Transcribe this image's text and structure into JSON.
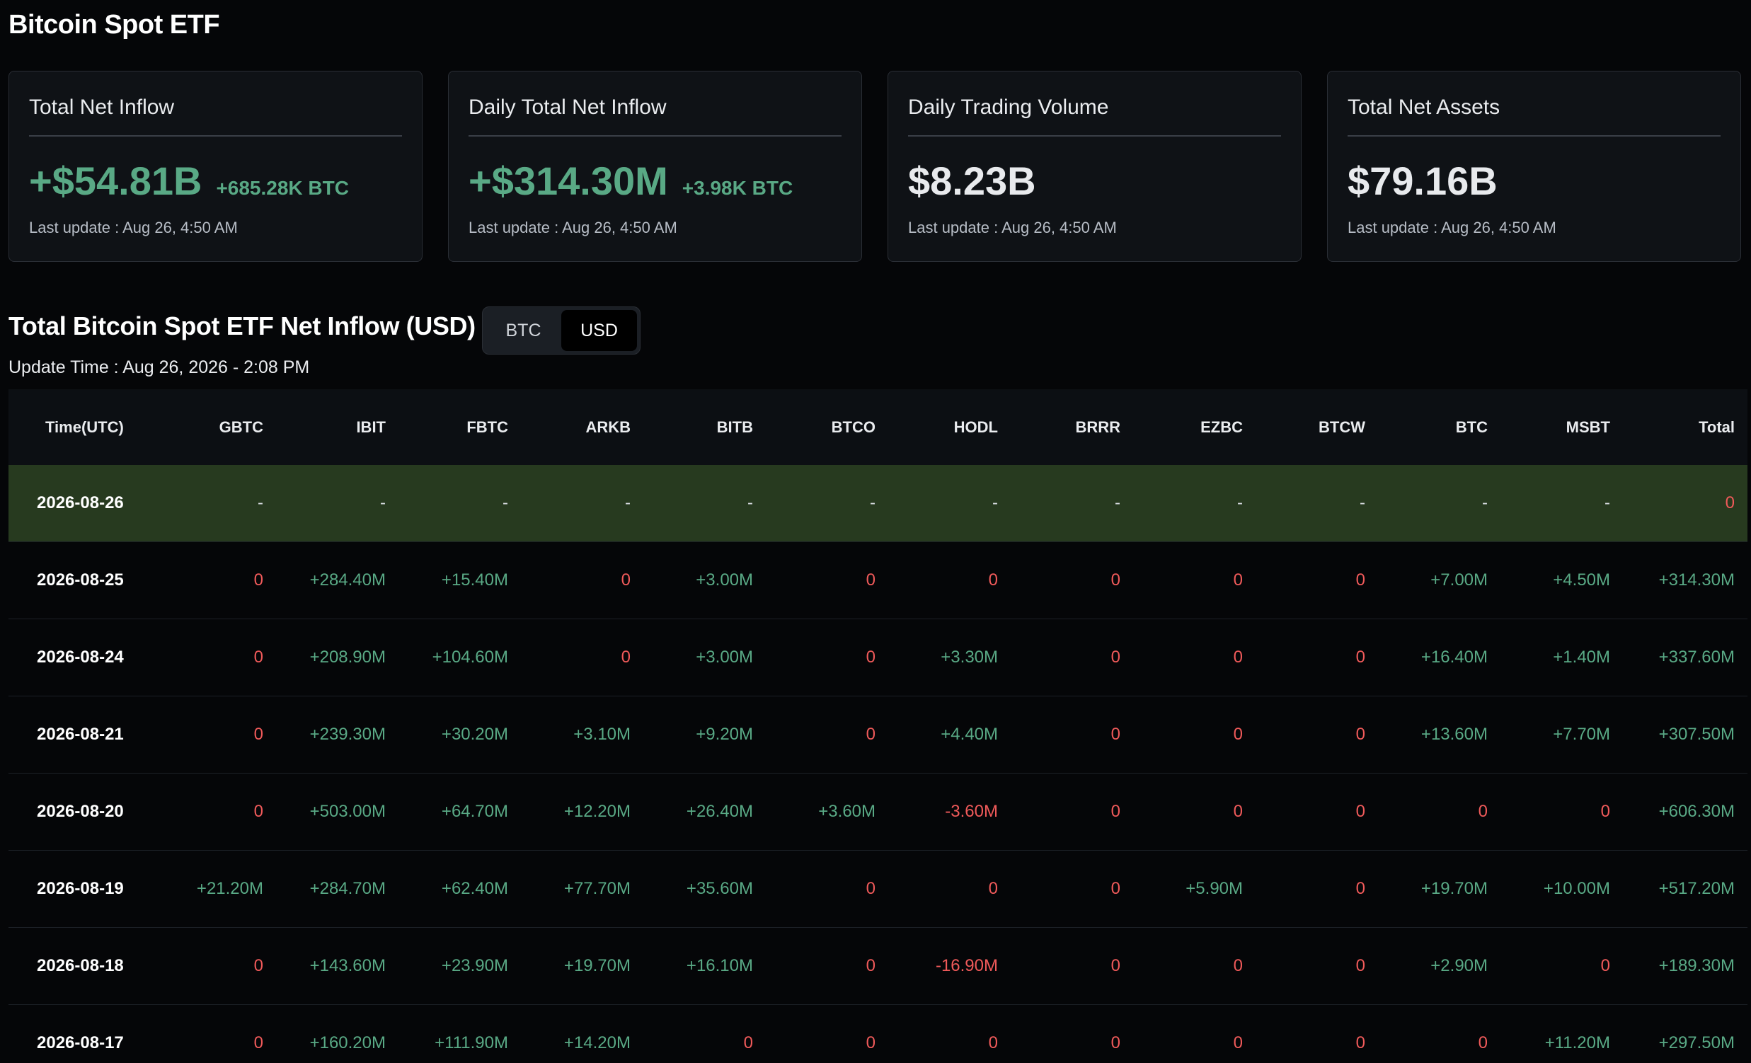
{
  "page": {
    "title": "Bitcoin Spot ETF"
  },
  "cards": [
    {
      "title": "Total Net Inflow",
      "value": "+$54.81B",
      "sub": "+685.28K BTC",
      "update": "Last update : Aug 26, 4:50 AM",
      "tone": "pos"
    },
    {
      "title": "Daily Total Net Inflow",
      "value": "+$314.30M",
      "sub": "+3.98K BTC",
      "update": "Last update : Aug 26, 4:50 AM",
      "tone": "pos"
    },
    {
      "title": "Daily Trading Volume",
      "value": "$8.23B",
      "sub": "",
      "update": "Last update : Aug 26, 4:50 AM",
      "tone": "neutral"
    },
    {
      "title": "Total Net Assets",
      "value": "$79.16B",
      "sub": "",
      "update": "Last update : Aug 26, 4:50 AM",
      "tone": "neutral"
    }
  ],
  "section": {
    "title": "Total Bitcoin Spot ETF Net Inflow (USD)",
    "toggle": {
      "options": [
        "BTC",
        "USD"
      ],
      "selected": "USD"
    },
    "update_time": "Update Time : Aug 26, 2026 - 2:08 PM"
  },
  "table": {
    "columns": [
      "Time(UTC)",
      "GBTC",
      "IBIT",
      "FBTC",
      "ARKB",
      "BITB",
      "BTCO",
      "HODL",
      "BRRR",
      "EZBC",
      "BTCW",
      "BTC",
      "MSBT",
      "Total"
    ],
    "rows": [
      {
        "highlight": true,
        "cells": [
          "2026-08-26",
          "-",
          "-",
          "-",
          "-",
          "-",
          "-",
          "-",
          "-",
          "-",
          "-",
          "-",
          "-",
          "0"
        ]
      },
      {
        "highlight": false,
        "cells": [
          "2026-08-25",
          "0",
          "+284.40M",
          "+15.40M",
          "0",
          "+3.00M",
          "0",
          "0",
          "0",
          "0",
          "0",
          "+7.00M",
          "+4.50M",
          "+314.30M"
        ]
      },
      {
        "highlight": false,
        "cells": [
          "2026-08-24",
          "0",
          "+208.90M",
          "+104.60M",
          "0",
          "+3.00M",
          "0",
          "+3.30M",
          "0",
          "0",
          "0",
          "+16.40M",
          "+1.40M",
          "+337.60M"
        ]
      },
      {
        "highlight": false,
        "cells": [
          "2026-08-21",
          "0",
          "+239.30M",
          "+30.20M",
          "+3.10M",
          "+9.20M",
          "0",
          "+4.40M",
          "0",
          "0",
          "0",
          "+13.60M",
          "+7.70M",
          "+307.50M"
        ]
      },
      {
        "highlight": false,
        "cells": [
          "2026-08-20",
          "0",
          "+503.00M",
          "+64.70M",
          "+12.20M",
          "+26.40M",
          "+3.60M",
          "-3.60M",
          "0",
          "0",
          "0",
          "0",
          "0",
          "+606.30M"
        ]
      },
      {
        "highlight": false,
        "cells": [
          "2026-08-19",
          "+21.20M",
          "+284.70M",
          "+62.40M",
          "+77.70M",
          "+35.60M",
          "0",
          "0",
          "0",
          "+5.90M",
          "0",
          "+19.70M",
          "+10.00M",
          "+517.20M"
        ]
      },
      {
        "highlight": false,
        "cells": [
          "2026-08-18",
          "0",
          "+143.60M",
          "+23.90M",
          "+19.70M",
          "+16.10M",
          "0",
          "-16.90M",
          "0",
          "0",
          "0",
          "+2.90M",
          "0",
          "+189.30M"
        ]
      },
      {
        "highlight": false,
        "cells": [
          "2026-08-17",
          "0",
          "+160.20M",
          "+111.90M",
          "+14.20M",
          "0",
          "0",
          "0",
          "0",
          "0",
          "0",
          "0",
          "+11.20M",
          "+297.50M"
        ]
      }
    ]
  },
  "colors": {
    "positive": "#59a985",
    "negative": "#f05a5a",
    "highlight_row": "#273a1f",
    "background": "#050608",
    "card_bg": "#0f1216"
  }
}
